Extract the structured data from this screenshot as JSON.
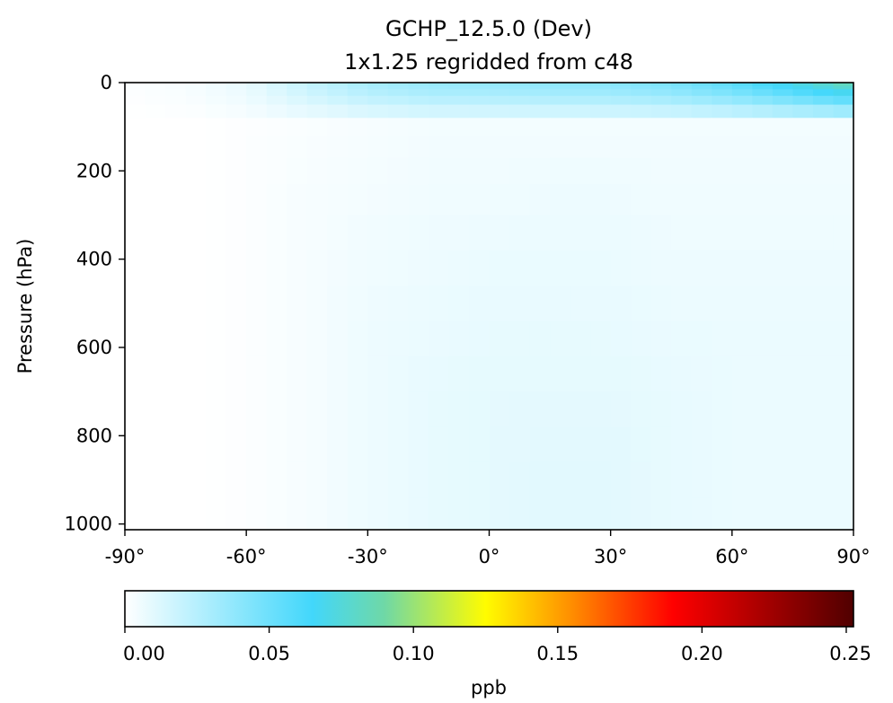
{
  "chart_data": {
    "type": "heatmap",
    "title": "GCHP_12.5.0 (Dev)",
    "subtitle": "1x1.25 regridded from c48",
    "ylabel": "Pressure (hPa)",
    "xlabel": "",
    "xlim": [
      -90,
      90
    ],
    "ylim": [
      1013,
      0
    ],
    "x_ticks": [
      -90,
      -60,
      -30,
      0,
      30,
      60,
      90
    ],
    "x_tick_labels": [
      "-90°",
      "-60°",
      "-30°",
      "0°",
      "30°",
      "60°",
      "90°"
    ],
    "y_ticks": [
      0,
      200,
      400,
      600,
      800,
      1000
    ],
    "y_tick_labels": [
      "0",
      "200",
      "400",
      "600",
      "800",
      "1000"
    ],
    "colorbar": {
      "label": "ppb",
      "range": [
        0,
        0.2525
      ],
      "ticks": [
        0,
        0.05,
        0.1,
        0.15,
        0.2,
        0.25
      ],
      "tick_labels": [
        "0.00",
        "0.05",
        "0.10",
        "0.15",
        "0.20",
        "0.25"
      ],
      "colormap_stops": [
        {
          "value": 0.0,
          "color": "#ffffff"
        },
        {
          "value": 0.065,
          "color": "#42d7fb"
        },
        {
          "value": 0.09,
          "color": "#6fd8a6"
        },
        {
          "value": 0.125,
          "color": "#fffc00"
        },
        {
          "value": 0.155,
          "color": "#ff8d00"
        },
        {
          "value": 0.19,
          "color": "#ff0000"
        },
        {
          "value": 0.2525,
          "color": "#500000"
        }
      ]
    },
    "field_description": "mostly near-zero concentrations with slightly elevated values in the tropics and northern midlatitudes, and a thin band of higher values at the top of the atmosphere",
    "field_samples": {
      "lat": [
        -90,
        -75,
        -60,
        -45,
        -30,
        -15,
        0,
        15,
        30,
        45,
        60,
        75,
        90
      ],
      "pressure": [
        5,
        100,
        250,
        400,
        550,
        700,
        850,
        1000
      ],
      "values_ppb": [
        [
          0.001,
          0.003,
          0.008,
          0.02,
          0.03,
          0.035,
          0.036,
          0.038,
          0.04,
          0.045,
          0.055,
          0.07,
          0.085
        ],
        [
          0.0,
          0.0,
          0.001,
          0.002,
          0.003,
          0.004,
          0.004,
          0.004,
          0.004,
          0.004,
          0.004,
          0.004,
          0.004
        ],
        [
          0.0,
          0.0,
          0.001,
          0.003,
          0.004,
          0.005,
          0.005,
          0.006,
          0.006,
          0.005,
          0.005,
          0.005,
          0.005
        ],
        [
          0.0,
          0.0,
          0.001,
          0.003,
          0.005,
          0.006,
          0.007,
          0.007,
          0.007,
          0.006,
          0.006,
          0.006,
          0.006
        ],
        [
          0.0,
          0.0,
          0.001,
          0.003,
          0.006,
          0.007,
          0.008,
          0.008,
          0.008,
          0.007,
          0.007,
          0.007,
          0.007
        ],
        [
          0.0,
          0.0,
          0.001,
          0.003,
          0.006,
          0.008,
          0.009,
          0.009,
          0.009,
          0.008,
          0.007,
          0.007,
          0.007
        ],
        [
          0.0,
          0.0,
          0.001,
          0.003,
          0.006,
          0.008,
          0.009,
          0.01,
          0.01,
          0.008,
          0.007,
          0.007,
          0.007
        ],
        [
          0.0,
          0.0,
          0.001,
          0.003,
          0.006,
          0.008,
          0.009,
          0.01,
          0.01,
          0.008,
          0.007,
          0.007,
          0.007
        ]
      ]
    }
  }
}
